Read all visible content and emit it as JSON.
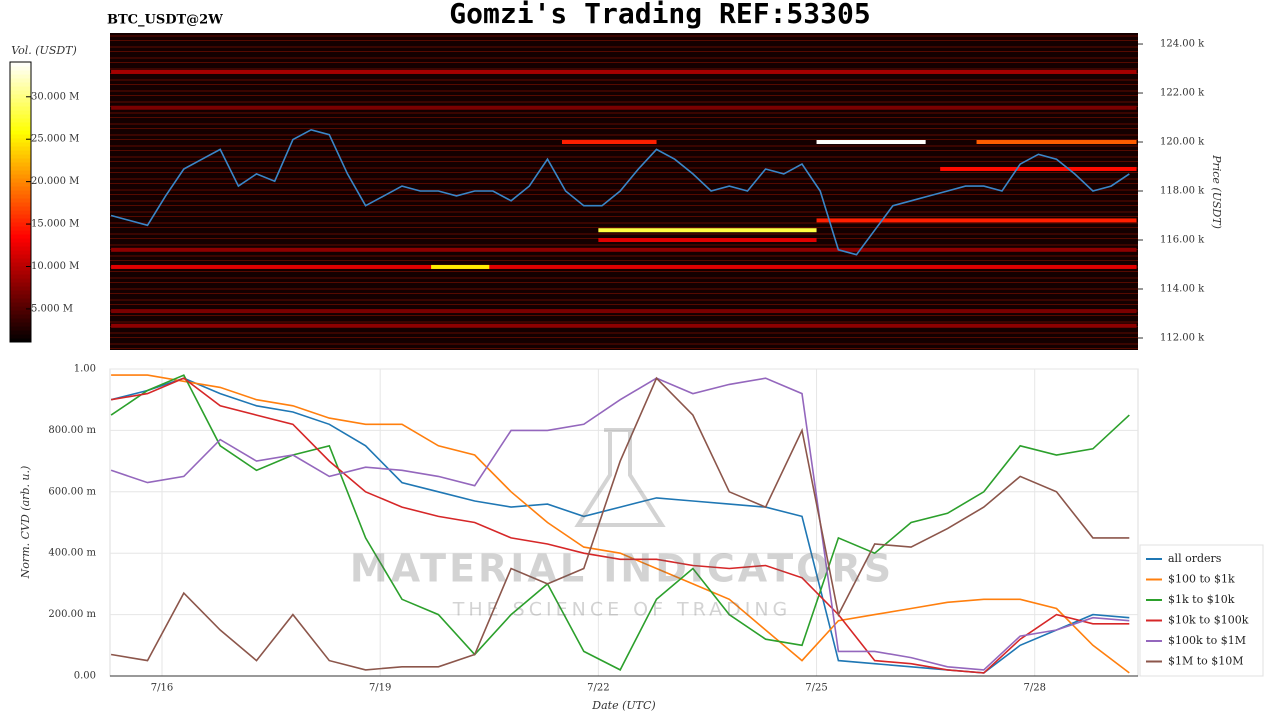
{
  "page_title": "Gomzi's Trading REF:53305",
  "watermark": {
    "title": "MATERIAL INDICATORS",
    "subtitle": "THE SCIENCE OF TRADING"
  },
  "chart_data": [
    {
      "type": "heatmap",
      "subtitle": "BTC_USDT@2W",
      "ylabel": "Price (USDT)",
      "xlim": [
        15.285,
        29.42
      ],
      "ylim": [
        111510,
        124450
      ],
      "yticks": [
        {
          "value": 112000,
          "label": "112.00 k"
        },
        {
          "value": 114000,
          "label": "114.00 k"
        },
        {
          "value": 116000,
          "label": "116.00 k"
        },
        {
          "value": 118000,
          "label": "118.00 k"
        },
        {
          "value": 120000,
          "label": "120.00 k"
        },
        {
          "value": 122000,
          "label": "122.00 k"
        },
        {
          "value": 124000,
          "label": "124.00 k"
        }
      ],
      "colorbar": {
        "label": "Vol. (USDT)",
        "colormap": "hot",
        "lim": [
          1100000,
          34100000
        ],
        "ticks": [
          {
            "value": 5000000,
            "label": "5.000 M"
          },
          {
            "value": 10000000,
            "label": "10.000 M"
          },
          {
            "value": 15000000,
            "label": "15.000 M"
          },
          {
            "value": 20000000,
            "label": "20.000 M"
          },
          {
            "value": 25000000,
            "label": "25.000 M"
          },
          {
            "value": 30000000,
            "label": "30.000 M"
          }
        ]
      },
      "bands": [
        {
          "price": 120000,
          "x0": 25.0,
          "x1": 26.5,
          "volume": 34000000
        },
        {
          "price": 116400,
          "x0": 22.0,
          "x1": 25.0,
          "volume": 28000000
        },
        {
          "price": 114900,
          "x0": 15.3,
          "x1": 29.4,
          "volume": 12000000
        },
        {
          "price": 114900,
          "x0": 19.7,
          "x1": 20.5,
          "volume": 25000000
        },
        {
          "price": 120000,
          "x0": 21.5,
          "x1": 22.8,
          "volume": 15000000
        },
        {
          "price": 120000,
          "x0": 27.2,
          "x1": 29.4,
          "volume": 18000000
        },
        {
          "price": 116800,
          "x0": 25.0,
          "x1": 29.4,
          "volume": 15000000
        },
        {
          "price": 118900,
          "x0": 26.7,
          "x1": 29.4,
          "volume": 14000000
        },
        {
          "price": 122860,
          "x0": 15.3,
          "x1": 29.4,
          "volume": 9000000
        },
        {
          "price": 121400,
          "x0": 15.3,
          "x1": 29.4,
          "volume": 7000000
        },
        {
          "price": 115600,
          "x0": 15.3,
          "x1": 29.4,
          "volume": 8000000
        },
        {
          "price": 113100,
          "x0": 15.3,
          "x1": 29.4,
          "volume": 7000000
        },
        {
          "price": 112500,
          "x0": 15.3,
          "x1": 29.4,
          "volume": 8000000
        },
        {
          "price": 116000,
          "x0": 22.0,
          "x1": 25.0,
          "volume": 12000000
        }
      ],
      "x": [
        15.3,
        15.55,
        15.8,
        16.05,
        16.3,
        16.55,
        16.8,
        17.05,
        17.3,
        17.55,
        17.8,
        18.05,
        18.3,
        18.55,
        18.8,
        19.05,
        19.3,
        19.55,
        19.8,
        20.05,
        20.3,
        20.55,
        20.8,
        21.05,
        21.3,
        21.55,
        21.8,
        22.05,
        22.3,
        22.55,
        22.8,
        23.05,
        23.3,
        23.55,
        23.8,
        24.05,
        24.3,
        24.55,
        24.8,
        25.05,
        25.3,
        25.55,
        25.8,
        26.05,
        26.3,
        26.55,
        26.8,
        27.05,
        27.3,
        27.55,
        27.8,
        28.05,
        28.3,
        28.55,
        28.8,
        29.05,
        29.3
      ],
      "series": [
        {
          "color": "#3a86c8",
          "values": [
            117000,
            116800,
            116600,
            117800,
            118900,
            119300,
            119700,
            118200,
            118700,
            118400,
            120100,
            120500,
            120300,
            118700,
            117400,
            117800,
            118200,
            118000,
            118000,
            117800,
            118000,
            118000,
            117600,
            118200,
            119300,
            118000,
            117400,
            117400,
            118000,
            118900,
            119700,
            119300,
            118700,
            118000,
            118200,
            118000,
            118900,
            118700,
            119100,
            118000,
            115600,
            115400,
            116400,
            117400,
            117600,
            117800,
            118000,
            118200,
            118200,
            118000,
            119100,
            119500,
            119300,
            118700,
            118000,
            118200,
            118700
          ]
        }
      ]
    },
    {
      "type": "line",
      "ylabel": "Norm. CVD (arb. u.)",
      "xlabel": "Date (UTC)",
      "grid": true,
      "legend": "lower right",
      "xlim": [
        15.285,
        29.42
      ],
      "ylim": [
        0,
        1
      ],
      "xticks": [
        {
          "value": 16,
          "label": "7/16"
        },
        {
          "value": 19,
          "label": "7/19"
        },
        {
          "value": 22,
          "label": "7/22"
        },
        {
          "value": 25,
          "label": "7/25"
        },
        {
          "value": 28,
          "label": "7/28"
        }
      ],
      "yticks": [
        {
          "value": 0,
          "label": "0.00"
        },
        {
          "value": 0.2,
          "label": "200.00 m"
        },
        {
          "value": 0.4,
          "label": "400.00 m"
        },
        {
          "value": 0.6,
          "label": "600.00 m"
        },
        {
          "value": 0.8,
          "label": "800.00 m"
        },
        {
          "value": 1,
          "label": "1.00"
        }
      ],
      "x": [
        15.3,
        15.8,
        16.3,
        16.8,
        17.3,
        17.8,
        18.3,
        18.8,
        19.3,
        19.8,
        20.3,
        20.8,
        21.3,
        21.8,
        22.3,
        22.8,
        23.3,
        23.8,
        24.3,
        24.8,
        25.3,
        25.8,
        26.3,
        26.8,
        27.3,
        27.8,
        28.3,
        28.8,
        29.3
      ],
      "series": [
        {
          "name": "all orders",
          "color": "#1f77b4",
          "values": [
            0.9,
            0.93,
            0.97,
            0.92,
            0.88,
            0.86,
            0.82,
            0.75,
            0.63,
            0.6,
            0.57,
            0.55,
            0.56,
            0.52,
            0.55,
            0.58,
            0.57,
            0.56,
            0.55,
            0.52,
            0.05,
            0.04,
            0.03,
            0.02,
            0.01,
            0.1,
            0.15,
            0.2,
            0.19
          ]
        },
        {
          "name": "$100 to $1k",
          "color": "#ff7f0e",
          "values": [
            0.98,
            0.98,
            0.96,
            0.94,
            0.9,
            0.88,
            0.84,
            0.82,
            0.82,
            0.75,
            0.72,
            0.6,
            0.5,
            0.42,
            0.4,
            0.35,
            0.3,
            0.25,
            0.15,
            0.05,
            0.18,
            0.2,
            0.22,
            0.24,
            0.25,
            0.25,
            0.22,
            0.1,
            0.01
          ]
        },
        {
          "name": "$1k to $10k",
          "color": "#2ca02c",
          "values": [
            0.85,
            0.93,
            0.98,
            0.75,
            0.67,
            0.72,
            0.75,
            0.45,
            0.25,
            0.2,
            0.07,
            0.2,
            0.3,
            0.08,
            0.02,
            0.25,
            0.35,
            0.2,
            0.12,
            0.1,
            0.45,
            0.4,
            0.5,
            0.53,
            0.6,
            0.75,
            0.72,
            0.74,
            0.85
          ]
        },
        {
          "name": "$10k to $100k",
          "color": "#d62728",
          "values": [
            0.9,
            0.92,
            0.97,
            0.88,
            0.85,
            0.82,
            0.7,
            0.6,
            0.55,
            0.52,
            0.5,
            0.45,
            0.43,
            0.4,
            0.38,
            0.38,
            0.36,
            0.35,
            0.36,
            0.32,
            0.2,
            0.05,
            0.04,
            0.02,
            0.01,
            0.12,
            0.2,
            0.17,
            0.17
          ]
        },
        {
          "name": "$100k to $1M",
          "color": "#9467bd",
          "values": [
            0.67,
            0.63,
            0.65,
            0.77,
            0.7,
            0.72,
            0.65,
            0.68,
            0.67,
            0.65,
            0.62,
            0.8,
            0.8,
            0.82,
            0.9,
            0.97,
            0.92,
            0.95,
            0.97,
            0.92,
            0.08,
            0.08,
            0.06,
            0.03,
            0.02,
            0.13,
            0.15,
            0.19,
            0.18
          ]
        },
        {
          "name": "$1M to $10M",
          "color": "#8c564b",
          "values": [
            0.07,
            0.05,
            0.27,
            0.15,
            0.05,
            0.2,
            0.05,
            0.02,
            0.03,
            0.03,
            0.07,
            0.35,
            0.3,
            0.35,
            0.7,
            0.97,
            0.85,
            0.6,
            0.55,
            0.8,
            0.2,
            0.43,
            0.42,
            0.48,
            0.55,
            0.65,
            0.6,
            0.45,
            0.45
          ]
        }
      ]
    }
  ]
}
